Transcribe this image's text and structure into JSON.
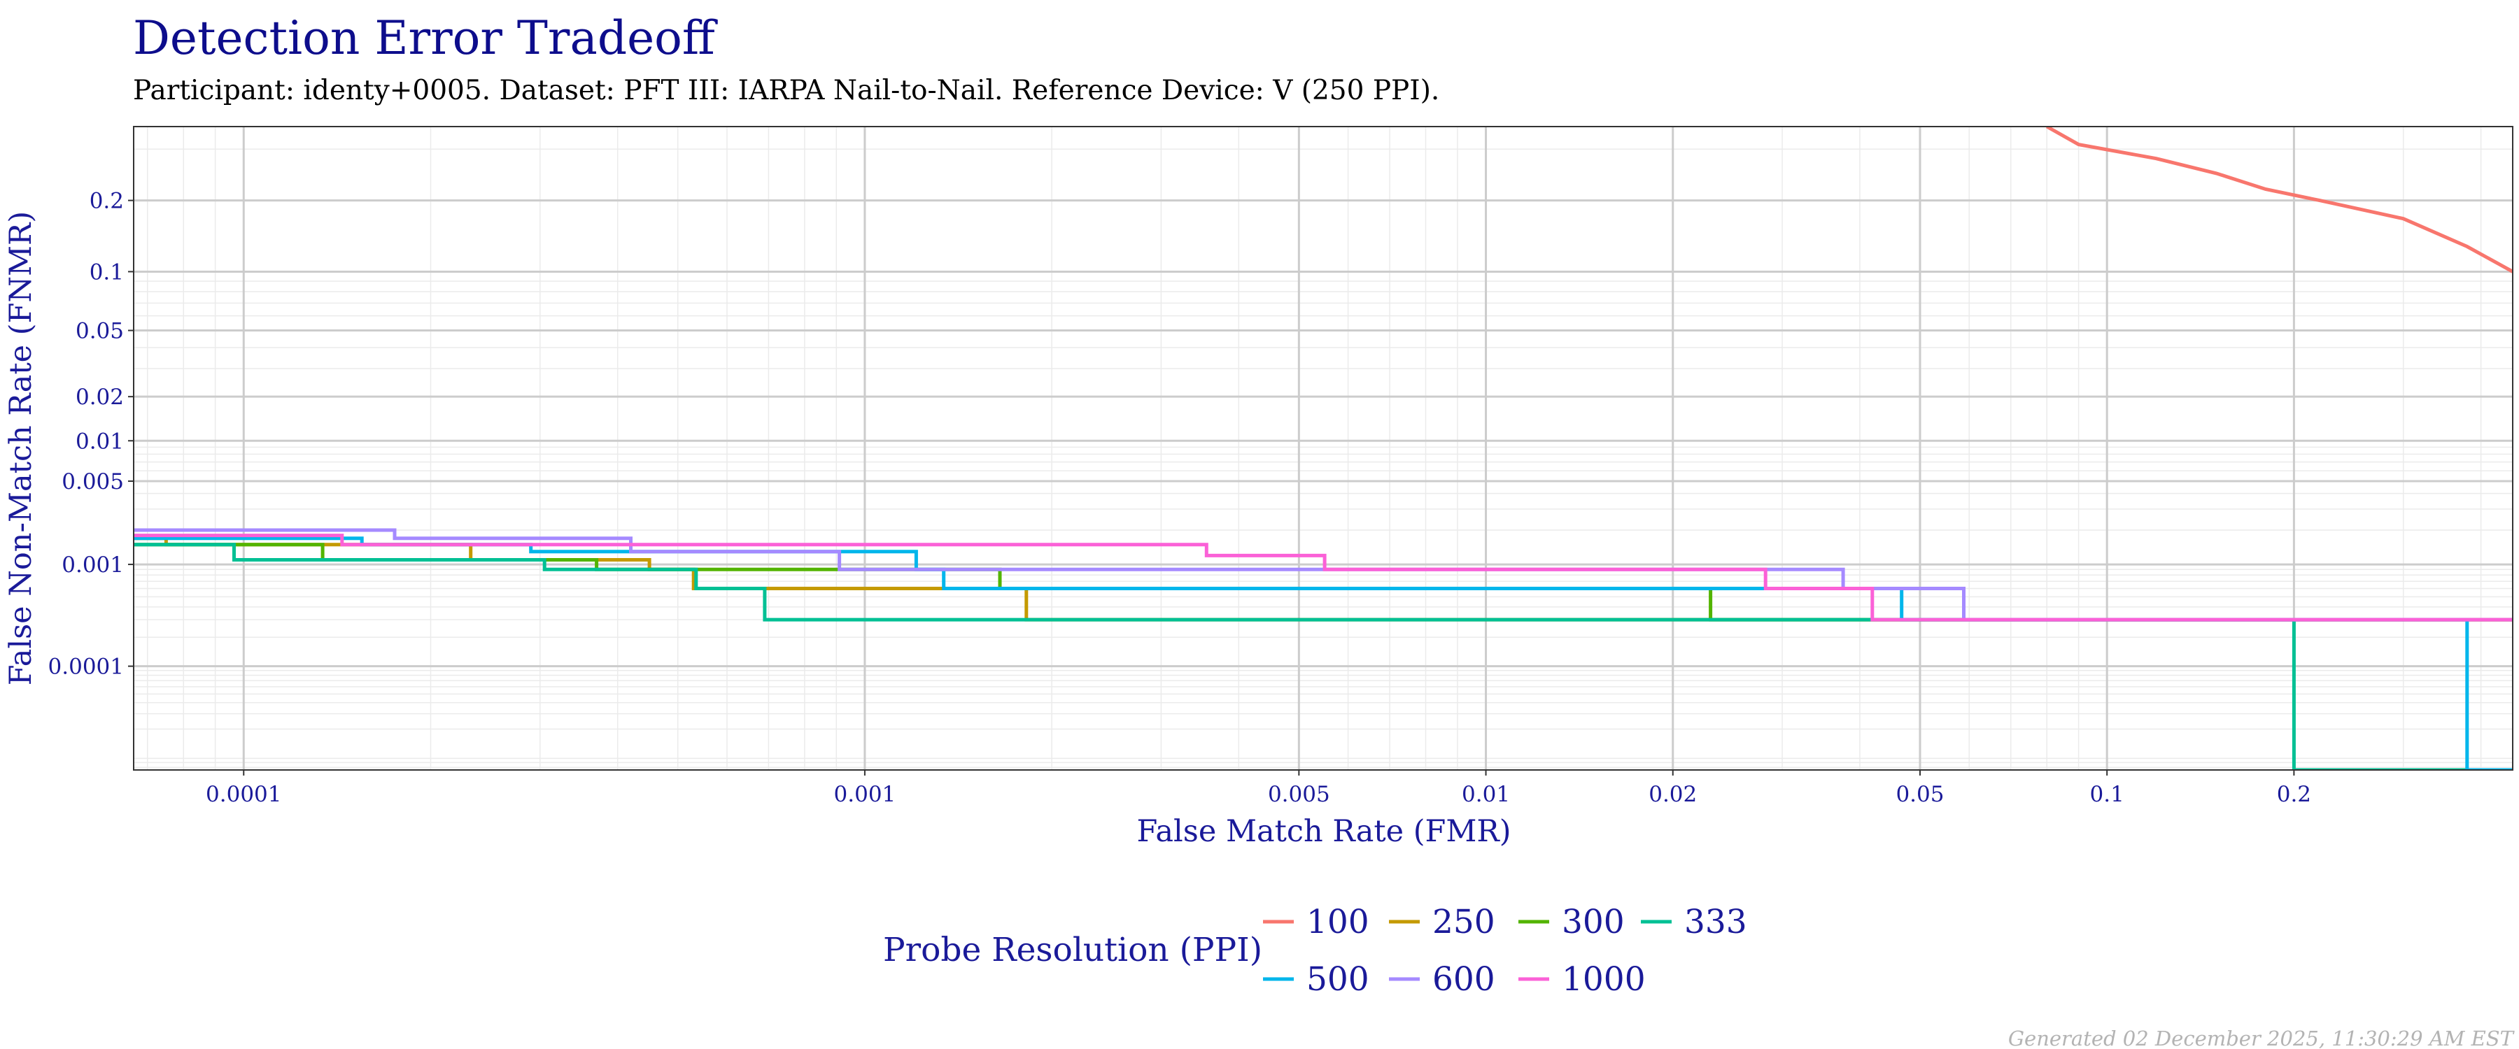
{
  "chart_data": {
    "type": "line",
    "title": "Detection Error Tradeoff",
    "subtitle": "Participant: identy+0005. Dataset: PFT III: IARPA Nail-to-Nail. Reference Device: V (250 PPI).",
    "xlabel": "False Match Rate (FMR)",
    "ylabel": "False Non-Match Rate (FNMR)",
    "xscale": "log",
    "yscale": "probit",
    "xlim": [
      6.65e-05,
      0.45
    ],
    "ylim": [
      6.5e-06,
      0.35
    ],
    "xticks": [
      {
        "value": 0.0001,
        "label": "0.0001"
      },
      {
        "value": 0.001,
        "label": "0.001"
      },
      {
        "value": 0.005,
        "label": "0.005"
      },
      {
        "value": 0.01,
        "label": "0.01"
      },
      {
        "value": 0.02,
        "label": "0.02"
      },
      {
        "value": 0.05,
        "label": "0.05"
      },
      {
        "value": 0.1,
        "label": "0.1"
      },
      {
        "value": 0.2,
        "label": "0.2"
      }
    ],
    "yticks": [
      {
        "value": 0.2,
        "label": "0.2"
      },
      {
        "value": 0.1,
        "label": "0.1"
      },
      {
        "value": 0.05,
        "label": "0.05"
      },
      {
        "value": 0.02,
        "label": "0.02"
      },
      {
        "value": 0.01,
        "label": "0.01"
      },
      {
        "value": 0.005,
        "label": "0.005"
      },
      {
        "value": 0.001,
        "label": "0.001"
      },
      {
        "value": 0.0001,
        "label": "0.0001"
      }
    ],
    "grid": true,
    "legend_title": "Probe Resolution (PPI)",
    "legend_position": "bottom",
    "series": [
      {
        "name": "100",
        "color": "#F8766D",
        "points": [
          [
            0.08,
            0.35
          ],
          [
            0.09,
            0.31
          ],
          [
            0.12,
            0.28
          ],
          [
            0.15,
            0.25
          ],
          [
            0.18,
            0.22
          ],
          [
            0.22,
            0.2
          ],
          [
            0.3,
            0.17
          ],
          [
            0.38,
            0.13
          ],
          [
            0.45,
            0.1
          ]
        ]
      },
      {
        "name": "250",
        "color": "#C49A00",
        "points": [
          [
            6.65e-05,
            0.0017
          ],
          [
            7.5e-05,
            0.0017
          ],
          [
            7.5e-05,
            0.0015
          ],
          [
            0.000232,
            0.0015
          ],
          [
            0.000232,
            0.0011
          ],
          [
            0.00045,
            0.0011
          ],
          [
            0.00045,
            0.0009
          ],
          [
            0.00053,
            0.0009
          ],
          [
            0.00053,
            0.0006
          ],
          [
            0.00182,
            0.0006
          ],
          [
            0.00182,
            0.0003
          ],
          [
            0.45,
            0.0003
          ]
        ]
      },
      {
        "name": "300",
        "color": "#53B400",
        "points": [
          [
            6.65e-05,
            0.0015
          ],
          [
            0.000134,
            0.0015
          ],
          [
            0.000134,
            0.0011
          ],
          [
            0.00037,
            0.0011
          ],
          [
            0.00037,
            0.0009
          ],
          [
            0.00165,
            0.0009
          ],
          [
            0.00165,
            0.0006
          ],
          [
            0.023,
            0.0006
          ],
          [
            0.023,
            0.0003
          ],
          [
            0.45,
            0.0003
          ]
        ]
      },
      {
        "name": "333",
        "color": "#00C094",
        "points": [
          [
            6.65e-05,
            0.0015
          ],
          [
            9.65e-05,
            0.0015
          ],
          [
            9.65e-05,
            0.0011
          ],
          [
            0.000305,
            0.0011
          ],
          [
            0.000305,
            0.0009
          ],
          [
            0.000535,
            0.0009
          ],
          [
            0.000535,
            0.0006
          ],
          [
            0.00069,
            0.0006
          ],
          [
            0.00069,
            0.0003
          ],
          [
            0.2,
            0.0003
          ],
          [
            0.2,
            6.5e-06
          ],
          [
            0.45,
            6.5e-06
          ]
        ]
      },
      {
        "name": "500",
        "color": "#00B6EB",
        "points": [
          [
            6.65e-05,
            0.0017
          ],
          [
            0.000155,
            0.0017
          ],
          [
            0.000155,
            0.0015
          ],
          [
            0.00029,
            0.0015
          ],
          [
            0.00029,
            0.0013
          ],
          [
            0.00121,
            0.0013
          ],
          [
            0.00121,
            0.0009
          ],
          [
            0.00134,
            0.0009
          ],
          [
            0.00134,
            0.0006
          ],
          [
            0.0467,
            0.0006
          ],
          [
            0.0467,
            0.0003
          ],
          [
            0.38,
            0.0003
          ],
          [
            0.38,
            6.5e-06
          ],
          [
            0.45,
            6.5e-06
          ]
        ]
      },
      {
        "name": "600",
        "color": "#A58AFF",
        "points": [
          [
            6.65e-05,
            0.002
          ],
          [
            0.000175,
            0.002
          ],
          [
            0.000175,
            0.0017
          ],
          [
            0.00042,
            0.0017
          ],
          [
            0.00042,
            0.0013
          ],
          [
            0.00091,
            0.0013
          ],
          [
            0.00091,
            0.0009
          ],
          [
            0.0376,
            0.0009
          ],
          [
            0.0376,
            0.0006
          ],
          [
            0.0588,
            0.0006
          ],
          [
            0.0588,
            0.0003
          ],
          [
            0.45,
            0.0003
          ]
        ]
      },
      {
        "name": "1000",
        "color": "#FB61D7",
        "points": [
          [
            6.65e-05,
            0.0018
          ],
          [
            0.000144,
            0.0018
          ],
          [
            0.000144,
            0.0015
          ],
          [
            0.00355,
            0.0015
          ],
          [
            0.00355,
            0.0012
          ],
          [
            0.0055,
            0.0012
          ],
          [
            0.0055,
            0.0009
          ],
          [
            0.0282,
            0.0009
          ],
          [
            0.0282,
            0.0006
          ],
          [
            0.0419,
            0.0006
          ],
          [
            0.0419,
            0.0003
          ],
          [
            0.45,
            0.0003
          ]
        ]
      }
    ]
  },
  "footer": "Generated 02 December 2025, 11:30:29 AM EST"
}
